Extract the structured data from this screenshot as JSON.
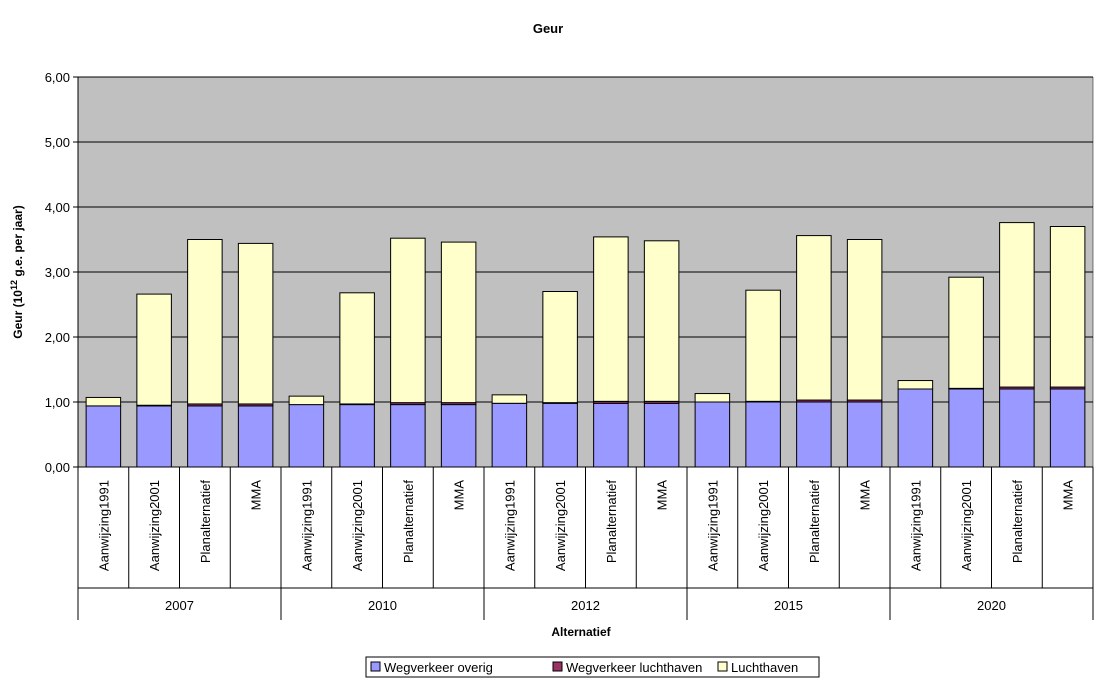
{
  "chart_data": {
    "type": "bar",
    "stacked": true,
    "title": "Geur",
    "ylabel_base": "Geur (10",
    "ylabel_sup": "12",
    "ylabel_rest": " g.e. per jaar)",
    "xlabel": "Alternatief",
    "ylim": [
      0,
      6
    ],
    "yticks": [
      "0,00",
      "1,00",
      "2,00",
      "3,00",
      "4,00",
      "5,00",
      "6,00"
    ],
    "grid": true,
    "plot_background": "#c0c0c0",
    "legend_position": "bottom",
    "groups": [
      {
        "label": "2007",
        "categories": [
          "Aanwijzing1991",
          "Aanwijzing2001",
          "Planalternatief",
          "MMA"
        ]
      },
      {
        "label": "2010",
        "categories": [
          "Aanwijzing1991",
          "Aanwijzing2001",
          "Planalternatief",
          "MMA"
        ]
      },
      {
        "label": "2012",
        "categories": [
          "Aanwijzing1991",
          "Aanwijzing2001",
          "Planalternatief",
          "MMA"
        ]
      },
      {
        "label": "2015",
        "categories": [
          "Aanwijzing1991",
          "Aanwijzing2001",
          "Planalternatief",
          "MMA"
        ]
      },
      {
        "label": "2020",
        "categories": [
          "Aanwijzing1991",
          "Aanwijzing2001",
          "Planalternatief",
          "MMA"
        ]
      }
    ],
    "series": [
      {
        "name": "Wegverkeer overig",
        "color": "#9999ff",
        "values": [
          0.94,
          0.94,
          0.94,
          0.94,
          0.96,
          0.96,
          0.96,
          0.96,
          0.98,
          0.98,
          0.98,
          0.98,
          1.0,
          1.0,
          1.0,
          1.0,
          1.2,
          1.2,
          1.2,
          1.2
        ]
      },
      {
        "name": "Wegverkeer luchthaven",
        "color": "#993366",
        "values": [
          0.0,
          0.01,
          0.03,
          0.03,
          0.0,
          0.01,
          0.03,
          0.03,
          0.0,
          0.01,
          0.03,
          0.03,
          0.0,
          0.01,
          0.03,
          0.03,
          0.0,
          0.01,
          0.03,
          0.03
        ]
      },
      {
        "name": "Luchthaven",
        "color": "#ffffcc",
        "values": [
          0.13,
          1.71,
          2.53,
          2.47,
          0.13,
          1.71,
          2.53,
          2.47,
          0.13,
          1.71,
          2.53,
          2.47,
          0.13,
          1.71,
          2.53,
          2.47,
          0.13,
          1.71,
          2.53,
          2.47
        ]
      }
    ]
  }
}
